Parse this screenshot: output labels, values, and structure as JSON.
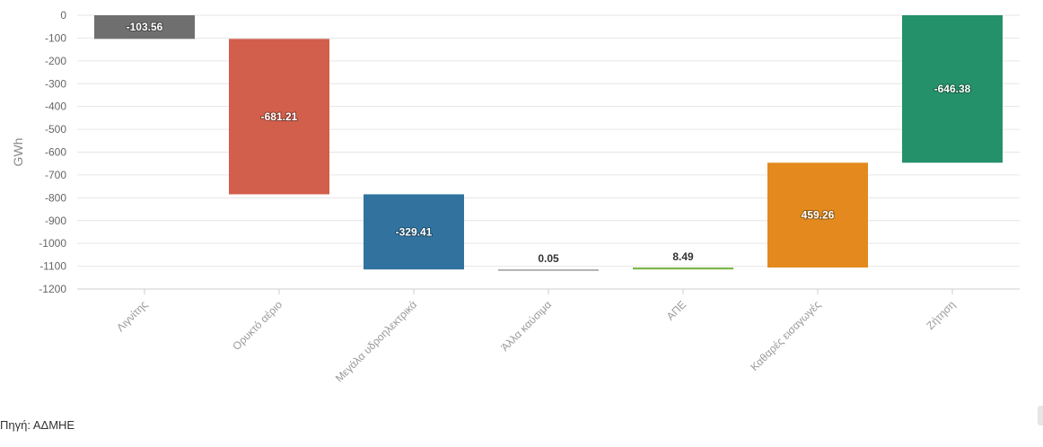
{
  "chart_data": {
    "type": "waterfall",
    "ylabel": "GWh",
    "ylim": [
      -1200,
      0
    ],
    "yticks": [
      0,
      -100,
      -200,
      -300,
      -400,
      -500,
      -600,
      -700,
      -800,
      -900,
      -1000,
      -1100,
      -1200
    ],
    "grid": true,
    "categories": [
      "Λιγνίτης",
      "Ορυκτό αέριο",
      "Μεγάλα υδροηλεκτρικά",
      "Άλλα καύσιμα",
      "ΑΠΕ",
      "Καθαρές εισαγωγές",
      "Ζήτηση"
    ],
    "bars": [
      {
        "category": "Λιγνίτης",
        "start": 0,
        "end": -103.56,
        "label": "-103.56",
        "color": "#6f6f6f"
      },
      {
        "category": "Ορυκτό αέριο",
        "start": -103.56,
        "end": -784.77,
        "label": "-681.21",
        "color": "#d15f4c"
      },
      {
        "category": "Μεγάλα υδροηλεκτρικά",
        "start": -784.77,
        "end": -1114.18,
        "label": "-329.41",
        "color": "#31739e"
      },
      {
        "category": "Άλλα καύσιμα",
        "start": -1114.18,
        "end": -1114.13,
        "label": "0.05",
        "color": "#9b9b9b"
      },
      {
        "category": "ΑΠΕ",
        "start": -1114.13,
        "end": -1105.64,
        "label": "8.49",
        "color": "#7ab648"
      },
      {
        "category": "Καθαρές εισαγωγές",
        "start": -1105.64,
        "end": -646.38,
        "label": "459.26",
        "color": "#e3891d"
      },
      {
        "category": "Ζήτηση",
        "start": 0,
        "end": -646.38,
        "label": "-646.38",
        "color": "#24916a"
      }
    ]
  },
  "source_text": "Πηγή: ΑΔΜΗΕ"
}
